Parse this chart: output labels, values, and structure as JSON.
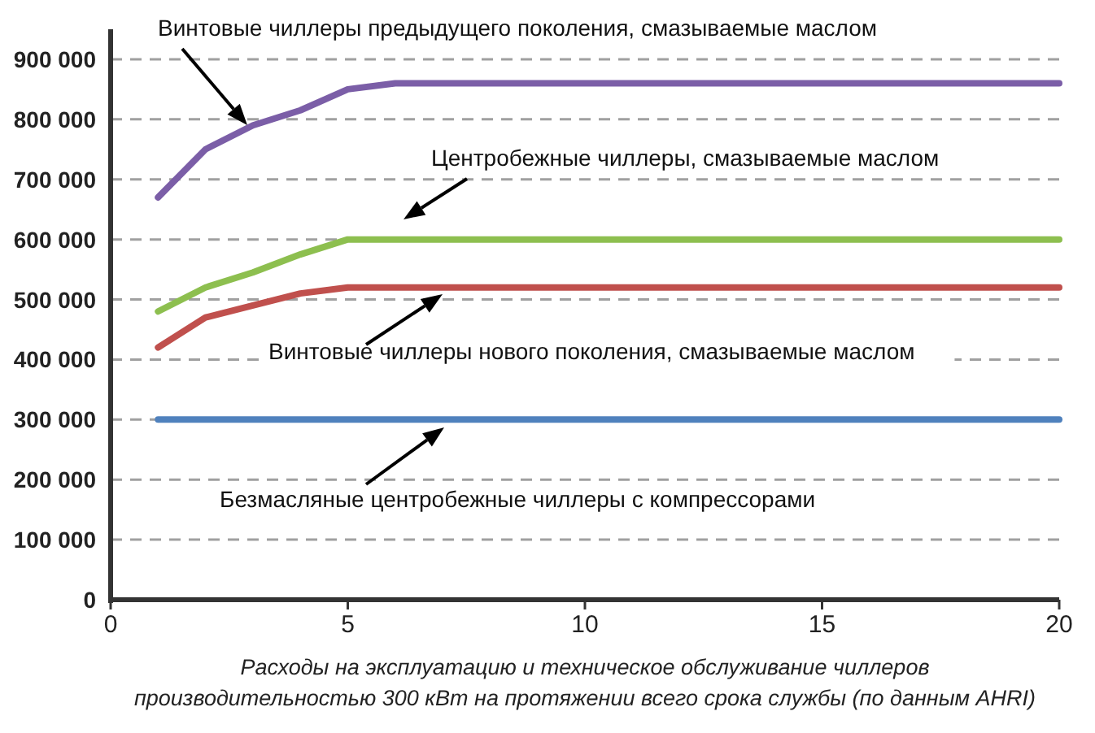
{
  "chart_data": {
    "type": "line",
    "x": [
      1,
      2,
      3,
      4,
      5,
      6,
      20
    ],
    "xlim": [
      0,
      20
    ],
    "xticks": [
      0,
      5,
      10,
      15,
      20
    ],
    "ylim": [
      0,
      950000
    ],
    "yticks": [
      0,
      {
        "value": 100000,
        "label": "100 000"
      },
      {
        "value": 200000,
        "label": "200 000"
      },
      {
        "value": 300000,
        "label": "300 000"
      },
      {
        "value": 400000,
        "label": "400 000"
      },
      {
        "value": 500000,
        "label": "500 000"
      },
      {
        "value": 600000,
        "label": "600 000"
      },
      {
        "value": 700000,
        "label": "700 000"
      },
      {
        "value": 800000,
        "label": "800 000"
      },
      {
        "value": 900000,
        "label": "900 000"
      }
    ],
    "grid": "y",
    "marker": "none",
    "line_style": "solid",
    "series": [
      {
        "color": "#7b5ea7",
        "values": [
          670000,
          750000,
          790000,
          815000,
          850000,
          860000,
          860000
        ]
      },
      {
        "color": "#8dbf4f",
        "values": [
          480000,
          520000,
          545000,
          575000,
          600000,
          600000,
          600000
        ]
      },
      {
        "color": "#c0504d",
        "values": [
          420000,
          470000,
          490000,
          510000,
          520000,
          520000,
          520000
        ]
      },
      {
        "color": "#4f81bd",
        "values": [
          300000,
          300000,
          300000,
          300000,
          300000,
          300000,
          300000
        ]
      }
    ],
    "annotations": [
      "Винтовые чиллеры предыдущего поколения, смазываемые маслом",
      "Центробежные чиллеры, смазываемые маслом",
      "Винтовые чиллеры нового поколения, смазываемые маслом",
      "Безмасляные центробежные чиллеры с компрессорами",
      "Расходы на эксплуатацию и техническое обслуживание чиллеров",
      "производительностью 300 кВт на протяжении всего срока службы (по данным AHRI)"
    ]
  }
}
